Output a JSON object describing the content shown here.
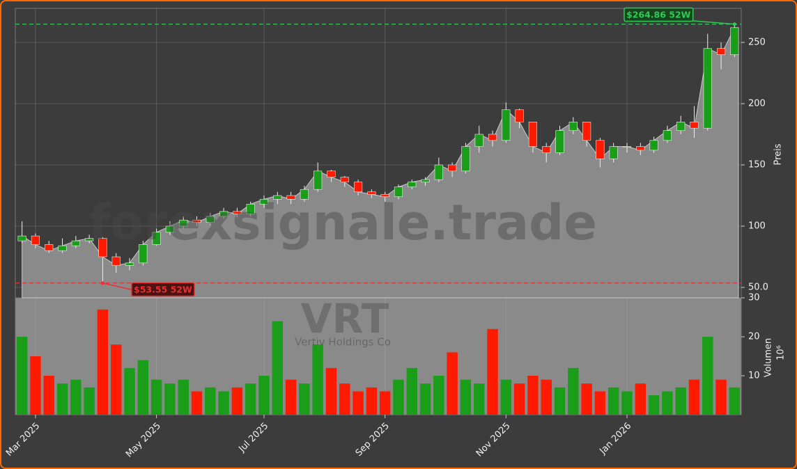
{
  "chart_data": {
    "type": "candlestick",
    "watermark": "forexsignale.trade",
    "symbol": "VRT",
    "company": "Vertiv Holdings Co",
    "ylabel": "Preis",
    "categories": [
      null,
      "Mar 2025",
      null,
      null,
      null,
      null,
      null,
      null,
      null,
      null,
      "May 2025",
      null,
      null,
      null,
      null,
      null,
      null,
      null,
      "Jul 2025",
      null,
      null,
      null,
      null,
      null,
      null,
      null,
      null,
      "Sep 2025",
      null,
      null,
      null,
      null,
      null,
      null,
      null,
      null,
      "Nov 2025",
      null,
      null,
      null,
      null,
      null,
      null,
      null,
      null,
      "Jan 2026",
      null,
      null,
      null,
      null,
      null,
      null,
      null,
      null
    ],
    "open": [
      88,
      92,
      85,
      80,
      84,
      88,
      90,
      75,
      68,
      70,
      85,
      95,
      100,
      105,
      103,
      108,
      112,
      110,
      118,
      122,
      125,
      122,
      130,
      145,
      140,
      136,
      128,
      126,
      124,
      132,
      136,
      138,
      150,
      145,
      165,
      175,
      170,
      195,
      185,
      165,
      160,
      178,
      185,
      170,
      155,
      165,
      165,
      162,
      170,
      178,
      185,
      180,
      245,
      240
    ],
    "high": [
      104,
      94,
      88,
      90,
      92,
      93,
      91,
      78,
      74,
      88,
      98,
      104,
      108,
      108,
      111,
      115,
      115,
      120,
      125,
      128,
      128,
      133,
      152,
      146,
      141,
      138,
      130,
      128,
      134,
      138,
      140,
      156,
      152,
      168,
      182,
      178,
      201,
      196,
      185,
      168,
      182,
      189,
      185,
      172,
      168,
      168,
      168,
      173,
      182,
      190,
      198,
      257,
      250,
      264.86
    ],
    "low": [
      86,
      82,
      78,
      78,
      82,
      86,
      53.55,
      62,
      64,
      68,
      84,
      93,
      98,
      100,
      101,
      106,
      107,
      108,
      115,
      118,
      118,
      120,
      128,
      136,
      132,
      125,
      123,
      120,
      122,
      130,
      133,
      136,
      140,
      143,
      160,
      165,
      168,
      180,
      160,
      152,
      158,
      175,
      165,
      148,
      152,
      160,
      158,
      160,
      168,
      175,
      172,
      178,
      228,
      238
    ],
    "close": [
      92,
      85,
      80,
      84,
      88,
      90,
      75,
      68,
      70,
      85,
      95,
      100,
      105,
      103,
      108,
      112,
      110,
      118,
      122,
      125,
      122,
      130,
      145,
      140,
      136,
      128,
      126,
      124,
      132,
      136,
      138,
      150,
      145,
      165,
      175,
      170,
      195,
      185,
      165,
      160,
      178,
      185,
      170,
      155,
      165,
      165,
      162,
      170,
      178,
      185,
      180,
      245,
      240,
      262
    ],
    "up_color": "#1a9e1a",
    "down_color": "#ff1a00",
    "area_color": "#8a8a8a",
    "ylim": [
      41.5,
      277.8
    ],
    "yticks": [
      {
        "value": 50,
        "label": "50.0"
      },
      100,
      150,
      200,
      250
    ],
    "grid": true,
    "high_52w": {
      "value": 264.86,
      "label": "$264.86 52W",
      "color": "#2ecc55"
    },
    "low_52w": {
      "value": 53.55,
      "label": "$53.55 52W",
      "color": "#e83030"
    },
    "volume": {
      "ylabel": "Volumen",
      "unit": "10⁶",
      "values": [
        20,
        15,
        10,
        8,
        9,
        7,
        27,
        18,
        12,
        14,
        9,
        8,
        9,
        6,
        7,
        6,
        7,
        8,
        10,
        24,
        9,
        8,
        18,
        12,
        8,
        6,
        7,
        6,
        9,
        12,
        8,
        10,
        16,
        9,
        8,
        22,
        9,
        8,
        10,
        9,
        7,
        12,
        8,
        6,
        7,
        6,
        8,
        5,
        6,
        7,
        9,
        20,
        9,
        7
      ],
      "ylim": [
        0,
        30
      ],
      "yticks": [
        10,
        20,
        30
      ]
    }
  }
}
